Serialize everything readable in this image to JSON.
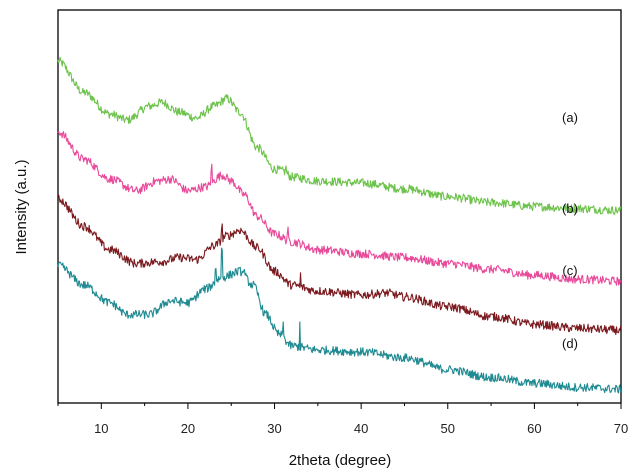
{
  "chart_data": {
    "type": "line",
    "xlabel": "2theta (degree)",
    "ylabel": "Intensity (a.u.)",
    "xlim": [
      5,
      70
    ],
    "x_ticks": [
      10,
      20,
      30,
      40,
      50,
      60,
      70
    ],
    "y_ticks_shown": false,
    "grid": false,
    "legend": "none (curves labeled inline on the right)",
    "series": [
      {
        "name": "(a)",
        "color": "#6cc24a",
        "points": [
          [
            5,
            0.87
          ],
          [
            8,
            0.79
          ],
          [
            11,
            0.735
          ],
          [
            13,
            0.72
          ],
          [
            15.5,
            0.755
          ],
          [
            17,
            0.765
          ],
          [
            19,
            0.74
          ],
          [
            21,
            0.725
          ],
          [
            23,
            0.755
          ],
          [
            24.5,
            0.775
          ],
          [
            26,
            0.74
          ],
          [
            28,
            0.65
          ],
          [
            30,
            0.595
          ],
          [
            31,
            0.59
          ],
          [
            32,
            0.575
          ],
          [
            35,
            0.565
          ],
          [
            40,
            0.56
          ],
          [
            45,
            0.545
          ],
          [
            50,
            0.525
          ],
          [
            55,
            0.51
          ],
          [
            60,
            0.5
          ],
          [
            65,
            0.495
          ],
          [
            70,
            0.49
          ]
        ]
      },
      {
        "name": "(b)",
        "color": "#e84a9a",
        "points": [
          [
            5,
            0.69
          ],
          [
            8,
            0.62
          ],
          [
            11,
            0.57
          ],
          [
            14,
            0.54
          ],
          [
            16.5,
            0.565
          ],
          [
            18,
            0.57
          ],
          [
            20,
            0.54
          ],
          [
            22,
            0.55
          ],
          [
            24,
            0.58
          ],
          [
            25,
            0.565
          ],
          [
            26.5,
            0.53
          ],
          [
            28,
            0.475
          ],
          [
            30,
            0.43
          ],
          [
            32,
            0.41
          ],
          [
            35,
            0.39
          ],
          [
            40,
            0.38
          ],
          [
            45,
            0.37
          ],
          [
            50,
            0.355
          ],
          [
            55,
            0.34
          ],
          [
            60,
            0.325
          ],
          [
            65,
            0.315
          ],
          [
            70,
            0.31
          ]
        ]
      },
      {
        "name": "(c)",
        "color": "#7b1a1f",
        "points": [
          [
            5,
            0.52
          ],
          [
            8,
            0.45
          ],
          [
            11,
            0.39
          ],
          [
            14,
            0.355
          ],
          [
            17,
            0.36
          ],
          [
            19,
            0.37
          ],
          [
            21,
            0.365
          ],
          [
            23,
            0.4
          ],
          [
            24.5,
            0.425
          ],
          [
            26,
            0.44
          ],
          [
            28,
            0.395
          ],
          [
            30,
            0.335
          ],
          [
            32,
            0.3
          ],
          [
            35,
            0.285
          ],
          [
            40,
            0.275
          ],
          [
            43,
            0.28
          ],
          [
            45,
            0.27
          ],
          [
            50,
            0.245
          ],
          [
            55,
            0.22
          ],
          [
            60,
            0.2
          ],
          [
            65,
            0.19
          ],
          [
            70,
            0.185
          ]
        ]
      },
      {
        "name": "(d)",
        "color": "#1f8a91",
        "points": [
          [
            5,
            0.35
          ],
          [
            8,
            0.3
          ],
          [
            11,
            0.255
          ],
          [
            13,
            0.225
          ],
          [
            15.5,
            0.225
          ],
          [
            18,
            0.26
          ],
          [
            20,
            0.255
          ],
          [
            22,
            0.29
          ],
          [
            24,
            0.32
          ],
          [
            26,
            0.335
          ],
          [
            27.5,
            0.3
          ],
          [
            29,
            0.225
          ],
          [
            30.5,
            0.175
          ],
          [
            32,
            0.145
          ],
          [
            35,
            0.135
          ],
          [
            40,
            0.13
          ],
          [
            45,
            0.115
          ],
          [
            50,
            0.085
          ],
          [
            55,
            0.065
          ],
          [
            60,
            0.05
          ],
          [
            65,
            0.04
          ],
          [
            70,
            0.035
          ]
        ]
      }
    ],
    "sharp_peaks": [
      {
        "series": 3,
        "x": 23.2,
        "h": 0.035
      },
      {
        "series": 3,
        "x": 23.9,
        "h": 0.07
      },
      {
        "series": 3,
        "x": 26.5,
        "h": 0.025
      },
      {
        "series": 3,
        "x": 31.0,
        "h": 0.045
      },
      {
        "series": 3,
        "x": 32.9,
        "h": 0.065
      },
      {
        "series": 2,
        "x": 23.9,
        "h": 0.03
      },
      {
        "series": 2,
        "x": 33.0,
        "h": 0.03
      },
      {
        "series": 1,
        "x": 22.7,
        "h": 0.04
      },
      {
        "series": 1,
        "x": 31.5,
        "h": 0.025
      },
      {
        "series": 0,
        "x": 31.3,
        "h": 0.02
      }
    ]
  }
}
